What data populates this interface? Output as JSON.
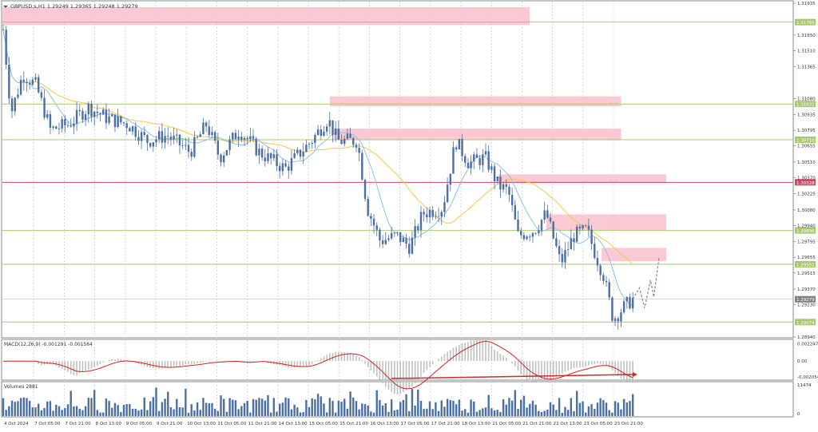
{
  "header": {
    "symbol_text": "GBPUSD.s,H1  1.29249 1.29365 1.29248 1.29279"
  },
  "colors": {
    "background": "#ffffff",
    "grid": "#d0d0d0",
    "candle": "#4a6fa5",
    "zone_fill": "#f9c0cc",
    "green_level": "#a8c870",
    "red_level": "#c44a6a",
    "ma_yellow": "#f5c842",
    "ma_blue": "#8ec0e8",
    "macd_signal": "#d02020",
    "histogram": "#c0c0c0",
    "volume": "#4a6fa5",
    "price_badge_green": "#a8c870",
    "price_badge_red": "#c44a6a",
    "current_price_badge": "#7f7f7f"
  },
  "chart_data": {
    "type": "candlestick",
    "symbol": "GBPUSD.s",
    "timeframe": "H1",
    "ohlc": {
      "open": "1.29249",
      "high": "1.29365",
      "low": "1.29248",
      "close": "1.29279"
    },
    "price_axis_labels": [
      "1.31935",
      "1.31650",
      "1.31510",
      "1.31365",
      "1.31080",
      "1.30935",
      "1.30795",
      "1.30655",
      "1.30510",
      "1.30370",
      "1.30225",
      "1.30080",
      "1.29940",
      "1.29795",
      "1.29655",
      "1.29515",
      "1.29370",
      "1.29230",
      "1.28940"
    ],
    "ylim": [
      1.2894,
      1.3195
    ],
    "time_axis_labels": [
      "4 Oct 2024",
      "7 Oct 05:00",
      "7 Oct 21:00",
      "8 Oct 13:00",
      "9 Oct 05:00",
      "9 Oct 21:00",
      "10 Oct 13:00",
      "11 Oct 05:00",
      "11 Oct 21:00",
      "14 Oct 13:00",
      "15 Oct 05:00",
      "15 Oct 21:00",
      "16 Oct 13:00",
      "17 Oct 05:00",
      "17 Oct 21:00",
      "18 Oct 13:00",
      "21 Oct 05:00",
      "21 Oct 21:00",
      "22 Oct 13:00",
      "23 Oct 05:00",
      "23 Oct 21:00"
    ],
    "price_levels": [
      {
        "price": 1.31766,
        "label": "1.31766",
        "kind": "green"
      },
      {
        "price": 1.31031,
        "label": "1.31031",
        "kind": "green"
      },
      {
        "price": 1.3071,
        "label": "1.30710",
        "kind": "green"
      },
      {
        "price": 1.30328,
        "label": "1.30328",
        "kind": "red"
      },
      {
        "price": 1.29896,
        "label": "1.29896",
        "kind": "green"
      },
      {
        "price": 1.29592,
        "label": "1.29592",
        "kind": "green"
      },
      {
        "price": 1.29279,
        "label": "1.29279",
        "kind": "current"
      },
      {
        "price": 1.29074,
        "label": "1.29074",
        "kind": "green"
      }
    ],
    "zones": [
      {
        "x0": 0,
        "x1": 0.8,
        "top": 1.319,
        "bottom": 1.3174
      },
      {
        "x0": 0.498,
        "x1": 0.936,
        "top": 1.311,
        "bottom": 1.3101
      },
      {
        "x0": 0.504,
        "x1": 0.936,
        "top": 1.3081,
        "bottom": 1.3071
      },
      {
        "x0": 0.755,
        "x1": 1.0,
        "top": 1.304,
        "bottom": 1.3032
      },
      {
        "x0": 0.828,
        "x1": 1.0,
        "top": 1.3004,
        "bottom": 1.299
      },
      {
        "x0": 0.912,
        "x1": 1.0,
        "top": 1.2974,
        "bottom": 1.2962
      }
    ],
    "price_keypoints": [
      [
        0,
        1.317
      ],
      [
        0.012,
        1.3095
      ],
      [
        0.03,
        1.313
      ],
      [
        0.05,
        1.312
      ],
      [
        0.072,
        1.308
      ],
      [
        0.1,
        1.3085
      ],
      [
        0.13,
        1.31
      ],
      [
        0.16,
        1.309
      ],
      [
        0.19,
        1.3085
      ],
      [
        0.22,
        1.307
      ],
      [
        0.25,
        1.3075
      ],
      [
        0.285,
        1.306
      ],
      [
        0.31,
        1.3085
      ],
      [
        0.33,
        1.3055
      ],
      [
        0.36,
        1.308
      ],
      [
        0.39,
        1.306
      ],
      [
        0.43,
        1.3045
      ],
      [
        0.47,
        1.307
      ],
      [
        0.495,
        1.309
      ],
      [
        0.51,
        1.307
      ],
      [
        0.54,
        1.307
      ],
      [
        0.555,
        1.301
      ],
      [
        0.575,
        1.298
      ],
      [
        0.6,
        1.2985
      ],
      [
        0.62,
        1.2975
      ],
      [
        0.64,
        1.3005
      ],
      [
        0.67,
        1.301
      ],
      [
        0.69,
        1.307
      ],
      [
        0.71,
        1.305
      ],
      [
        0.735,
        1.3055
      ],
      [
        0.755,
        1.303
      ],
      [
        0.77,
        1.3025
      ],
      [
        0.785,
        1.2985
      ],
      [
        0.81,
        1.299
      ],
      [
        0.828,
        1.3005
      ],
      [
        0.85,
        1.296
      ],
      [
        0.87,
        1.2985
      ],
      [
        0.89,
        1.299
      ],
      [
        0.905,
        1.2965
      ],
      [
        0.915,
        1.295
      ],
      [
        0.93,
        1.291
      ],
      [
        0.945,
        1.292
      ],
      [
        0.96,
        1.2928
      ]
    ],
    "projection": [
      [
        0.96,
        1.2928
      ],
      [
        0.97,
        1.2938
      ],
      [
        0.978,
        1.292
      ],
      [
        0.987,
        1.2945
      ],
      [
        0.992,
        1.293
      ],
      [
        1.0,
        1.2965
      ]
    ],
    "indicators": {
      "macd": {
        "label": "MACD(12,26,9) -0.001291 -0.001564",
        "axis_labels": [
          "0.002247",
          "0.00",
          "-0.002054"
        ],
        "ylim": [
          -0.00225,
          0.0025
        ]
      },
      "volumes": {
        "label": "Volumes 2881",
        "axis_labels": [
          "11474",
          "0"
        ]
      }
    }
  }
}
